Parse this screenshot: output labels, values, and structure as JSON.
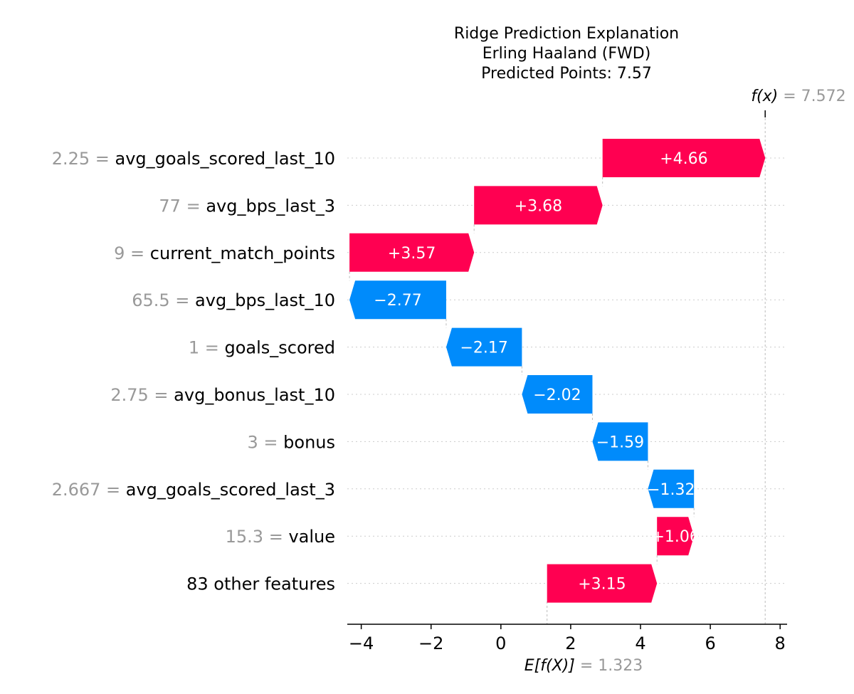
{
  "chart_data": {
    "type": "waterfall",
    "title_lines": [
      "Ridge Prediction Explanation",
      "Erling Haaland (FWD)",
      "Predicted Points: 7.57"
    ],
    "base_value": 1.323,
    "base_label_expr": "E[f(X)]",
    "base_label_value": "= 1.323",
    "final_value": 7.572,
    "final_label_expr": "f(x)",
    "final_label_value": "= 7.572",
    "xlim": [
      -4.4,
      8.2
    ],
    "x_ticks": [
      -4,
      -2,
      0,
      2,
      4,
      6,
      8
    ],
    "x_tick_labels": [
      "−4",
      "−2",
      "0",
      "2",
      "4",
      "6",
      "8"
    ],
    "positive_color": "#ff0051",
    "negative_color": "#008bfb",
    "features": [
      {
        "value": "2.25",
        "name": "avg_goals_scored_last_10",
        "contribution": 4.66,
        "label": "+4.66"
      },
      {
        "value": "77",
        "name": "avg_bps_last_3",
        "contribution": 3.68,
        "label": "+3.68"
      },
      {
        "value": "9",
        "name": "current_match_points",
        "contribution": 3.57,
        "label": "+3.57"
      },
      {
        "value": "65.5",
        "name": "avg_bps_last_10",
        "contribution": -2.77,
        "label": "−2.77"
      },
      {
        "value": "1",
        "name": "goals_scored",
        "contribution": -2.17,
        "label": "−2.17"
      },
      {
        "value": "2.75",
        "name": "avg_bonus_last_10",
        "contribution": -2.02,
        "label": "−2.02"
      },
      {
        "value": "3",
        "name": "bonus",
        "contribution": -1.59,
        "label": "−1.59"
      },
      {
        "value": "2.667",
        "name": "avg_goals_scored_last_3",
        "contribution": -1.32,
        "label": "−1.32"
      },
      {
        "value": "15.3",
        "name": "value",
        "contribution": 1.06,
        "label": "+1.06"
      },
      {
        "value": "",
        "name": "83 other features",
        "contribution": 3.15,
        "label": "+3.15"
      }
    ]
  }
}
